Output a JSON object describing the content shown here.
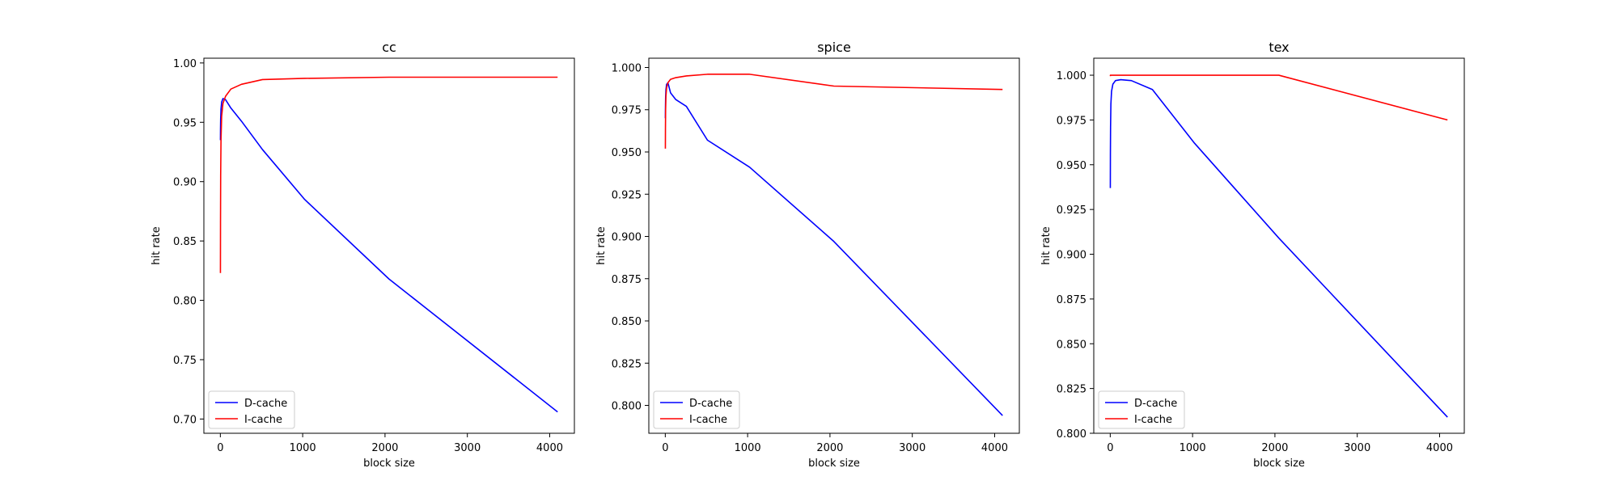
{
  "chart_data": [
    {
      "type": "line",
      "title": "cc",
      "xlabel": "block size",
      "ylabel": "hit rate",
      "xlim": [
        -200,
        4300
      ],
      "ylim": [
        0.688,
        1.004
      ],
      "xticks": [
        0,
        1000,
        2000,
        3000,
        4000
      ],
      "yticks": [
        0.7,
        0.75,
        0.8,
        0.85,
        0.9,
        0.95,
        1.0
      ],
      "ytick_labels": [
        "0.70",
        "0.75",
        "0.80",
        "0.85",
        "0.90",
        "0.95",
        "1.00"
      ],
      "legend_position": "lower-left",
      "grid": false,
      "series": [
        {
          "name": "D-cache",
          "color": "#0000ff",
          "x": [
            1,
            2,
            4,
            8,
            16,
            32,
            64,
            128,
            256,
            512,
            1024,
            2048,
            4096
          ],
          "y": [
            0.935,
            0.944,
            0.953,
            0.961,
            0.967,
            0.97,
            0.969,
            0.962,
            0.951,
            0.927,
            0.885,
            0.818,
            0.706
          ]
        },
        {
          "name": "I-cache",
          "color": "#ff0000",
          "x": [
            1,
            2,
            4,
            8,
            16,
            32,
            64,
            128,
            256,
            512,
            1024,
            2048,
            4096
          ],
          "y": [
            0.823,
            0.865,
            0.905,
            0.935,
            0.955,
            0.966,
            0.972,
            0.978,
            0.982,
            0.986,
            0.987,
            0.988,
            0.988
          ]
        }
      ]
    },
    {
      "type": "line",
      "title": "spice",
      "xlabel": "block size",
      "ylabel": "hit rate",
      "xlim": [
        -200,
        4300
      ],
      "ylim": [
        0.7835,
        1.0055
      ],
      "xticks": [
        0,
        1000,
        2000,
        3000,
        4000
      ],
      "yticks": [
        0.8,
        0.825,
        0.85,
        0.875,
        0.9,
        0.925,
        0.95,
        0.975,
        1.0
      ],
      "ytick_labels": [
        "0.800",
        "0.825",
        "0.850",
        "0.875",
        "0.900",
        "0.925",
        "0.950",
        "0.975",
        "1.000"
      ],
      "legend_position": "lower-left",
      "grid": false,
      "series": [
        {
          "name": "D-cache",
          "color": "#0000ff",
          "x": [
            1,
            2,
            4,
            8,
            16,
            32,
            64,
            128,
            256,
            512,
            1024,
            2048,
            4096
          ],
          "y": [
            0.97,
            0.976,
            0.982,
            0.987,
            0.99,
            0.991,
            0.985,
            0.981,
            0.977,
            0.957,
            0.941,
            0.897,
            0.794
          ]
        },
        {
          "name": "I-cache",
          "color": "#ff0000",
          "x": [
            1,
            2,
            4,
            8,
            16,
            32,
            64,
            128,
            256,
            512,
            1024,
            2048,
            4096
          ],
          "y": [
            0.952,
            0.964,
            0.975,
            0.983,
            0.988,
            0.991,
            0.993,
            0.994,
            0.995,
            0.996,
            0.996,
            0.989,
            0.987
          ]
        }
      ]
    },
    {
      "type": "line",
      "title": "tex",
      "xlabel": "block size",
      "ylabel": "hit rate",
      "xlim": [
        -200,
        4300
      ],
      "ylim": [
        0.8,
        1.0095
      ],
      "xticks": [
        0,
        1000,
        2000,
        3000,
        4000
      ],
      "yticks": [
        0.8,
        0.825,
        0.85,
        0.875,
        0.9,
        0.925,
        0.95,
        0.975,
        1.0
      ],
      "ytick_labels": [
        "0.800",
        "0.825",
        "0.850",
        "0.875",
        "0.900",
        "0.925",
        "0.950",
        "0.975",
        "1.000"
      ],
      "legend_position": "lower-left",
      "grid": false,
      "series": [
        {
          "name": "D-cache",
          "color": "#0000ff",
          "x": [
            1,
            2,
            4,
            8,
            16,
            32,
            64,
            128,
            256,
            512,
            1024,
            2048,
            4096
          ],
          "y": [
            0.937,
            0.956,
            0.971,
            0.984,
            0.991,
            0.995,
            0.997,
            0.9975,
            0.997,
            0.992,
            0.962,
            0.909,
            0.809
          ]
        },
        {
          "name": "I-cache",
          "color": "#ff0000",
          "x": [
            1,
            2,
            4,
            8,
            16,
            32,
            64,
            128,
            256,
            512,
            1024,
            2048,
            4096
          ],
          "y": [
            0.9995,
            1.0,
            1.0,
            1.0,
            1.0,
            1.0,
            1.0,
            1.0,
            1.0,
            1.0,
            1.0,
            1.0,
            0.975
          ]
        }
      ]
    }
  ]
}
